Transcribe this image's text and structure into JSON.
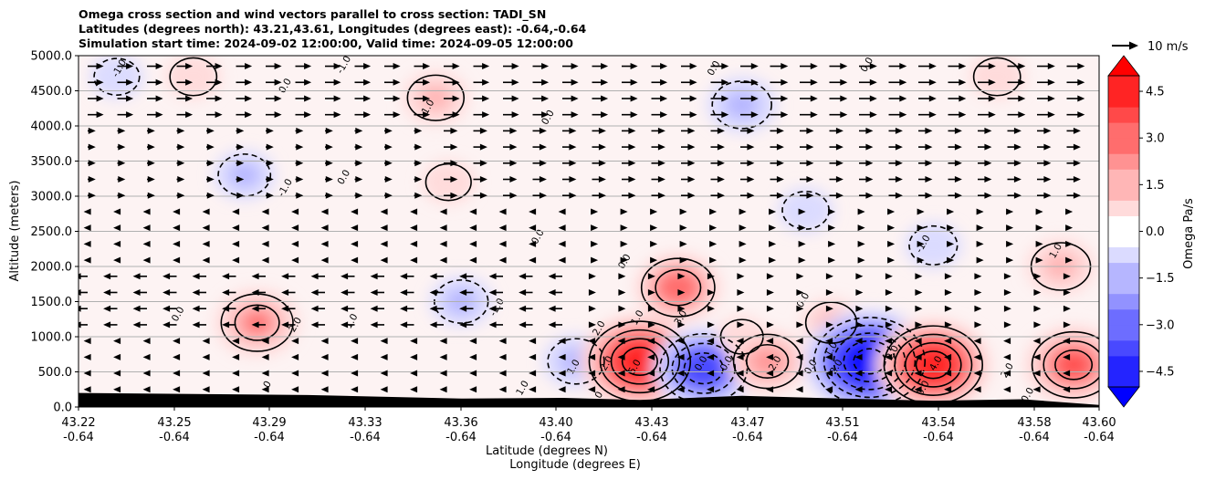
{
  "chart_data": {
    "type": "heatmap",
    "title_lines": [
      "Omega cross section and wind vectors parallel to cross section: TADI_SN",
      "Latitudes (degrees north): 43.21,43.61, Longitudes (degrees east): -0.64,-0.64",
      "Simulation start time: 2024-09-02 12:00:00, Valid time: 2024-09-05 12:00:00"
    ],
    "ylabel": "Altitude (meters)",
    "xlabel_lines": [
      "Latitude (degrees N)",
      "Longitude (degrees E)"
    ],
    "ylim": [
      0,
      5000
    ],
    "y_ticks": [
      "0.0",
      "500.0",
      "1000.0",
      "1500.0",
      "2000.0",
      "2500.0",
      "3000.0",
      "3500.0",
      "4000.0",
      "4500.0",
      "5000.0"
    ],
    "x_ticks": [
      {
        "lat": "43.22",
        "lon": "-0.64"
      },
      {
        "lat": "43.25",
        "lon": "-0.64"
      },
      {
        "lat": "43.29",
        "lon": "-0.64"
      },
      {
        "lat": "43.33",
        "lon": "-0.64"
      },
      {
        "lat": "43.36",
        "lon": "-0.64"
      },
      {
        "lat": "43.40",
        "lon": "-0.64"
      },
      {
        "lat": "43.43",
        "lon": "-0.64"
      },
      {
        "lat": "43.47",
        "lon": "-0.64"
      },
      {
        "lat": "43.51",
        "lon": "-0.64"
      },
      {
        "lat": "43.54",
        "lon": "-0.64"
      },
      {
        "lat": "43.58",
        "lon": "-0.64"
      },
      {
        "lat": "43.60",
        "lon": "-0.64"
      }
    ],
    "colorbar": {
      "label": "Omega Pa/s",
      "range": [
        -5,
        5
      ],
      "ticks": [
        "−4.5",
        "−3.0",
        "−1.5",
        "0.0",
        "1.5",
        "3.0",
        "4.5"
      ],
      "tick_values": [
        -4.5,
        -3.0,
        -1.5,
        0.0,
        1.5,
        3.0,
        4.5
      ],
      "colormap": "bwr",
      "extend": "both"
    },
    "quiver_key": "10 m/s",
    "grid": "horizontal",
    "omega_centers": [
      {
        "lat": 43.225,
        "alt": 4700,
        "value": -0.8
      },
      {
        "lat": 43.255,
        "alt": 4700,
        "value": 0.9
      },
      {
        "lat": 43.275,
        "alt": 3300,
        "value": -1.3
      },
      {
        "lat": 43.28,
        "alt": 1200,
        "value": 2.7
      },
      {
        "lat": 43.35,
        "alt": 4400,
        "value": 1.6
      },
      {
        "lat": 43.355,
        "alt": 3200,
        "value": 0.8
      },
      {
        "lat": 43.36,
        "alt": 1500,
        "value": -1.4
      },
      {
        "lat": 43.405,
        "alt": 650,
        "value": -1.6
      },
      {
        "lat": 43.43,
        "alt": 650,
        "value": 4.8
      },
      {
        "lat": 43.445,
        "alt": 1700,
        "value": 2.8
      },
      {
        "lat": 43.455,
        "alt": 550,
        "value": -3.8
      },
      {
        "lat": 43.47,
        "alt": 4300,
        "value": -1.8
      },
      {
        "lat": 43.47,
        "alt": 1000,
        "value": 0.6
      },
      {
        "lat": 43.48,
        "alt": 650,
        "value": 2.4
      },
      {
        "lat": 43.495,
        "alt": 2800,
        "value": -0.9
      },
      {
        "lat": 43.505,
        "alt": 1200,
        "value": 1.2
      },
      {
        "lat": 43.52,
        "alt": 650,
        "value": -5.5
      },
      {
        "lat": 43.545,
        "alt": 600,
        "value": 4.6
      },
      {
        "lat": 43.545,
        "alt": 2300,
        "value": -1.0
      },
      {
        "lat": 43.57,
        "alt": 4700,
        "value": 0.9
      },
      {
        "lat": 43.595,
        "alt": 2000,
        "value": 1.8
      },
      {
        "lat": 43.6,
        "alt": 600,
        "value": 3.5
      }
    ],
    "contour_labels": [
      {
        "lat": 43.227,
        "alt": 4800,
        "text": "-1.0"
      },
      {
        "lat": 43.292,
        "alt": 4550,
        "text": "0.0"
      },
      {
        "lat": 43.315,
        "alt": 4850,
        "text": "-1.0"
      },
      {
        "lat": 43.348,
        "alt": 4250,
        "text": "1.0"
      },
      {
        "lat": 43.292,
        "alt": 3100,
        "text": "-1.0"
      },
      {
        "lat": 43.315,
        "alt": 3250,
        "text": "0.0"
      },
      {
        "lat": 43.395,
        "alt": 4100,
        "text": "0.0"
      },
      {
        "lat": 43.46,
        "alt": 4800,
        "text": "0.0"
      },
      {
        "lat": 43.52,
        "alt": 4850,
        "text": "0.0"
      },
      {
        "lat": 43.391,
        "alt": 2400,
        "text": "0.0"
      },
      {
        "lat": 43.425,
        "alt": 2050,
        "text": "0.0"
      },
      {
        "lat": 43.25,
        "alt": 1300,
        "text": "0.0"
      },
      {
        "lat": 43.296,
        "alt": 1150,
        "text": "2.0"
      },
      {
        "lat": 43.318,
        "alt": 1200,
        "text": "1.0"
      },
      {
        "lat": 43.375,
        "alt": 1400,
        "text": "-1.0"
      },
      {
        "lat": 43.542,
        "alt": 2300,
        "text": "-1.0"
      },
      {
        "lat": 43.594,
        "alt": 2200,
        "text": "1.0"
      },
      {
        "lat": 43.495,
        "alt": 1500,
        "text": "0.0"
      },
      {
        "lat": 43.43,
        "alt": 1250,
        "text": "1.0"
      },
      {
        "lat": 43.447,
        "alt": 1250,
        "text": "3.0"
      },
      {
        "lat": 43.415,
        "alt": 1100,
        "text": "2.0"
      },
      {
        "lat": 43.405,
        "alt": 550,
        "text": "1.0"
      },
      {
        "lat": 43.418,
        "alt": 600,
        "text": "2.0"
      },
      {
        "lat": 43.429,
        "alt": 550,
        "text": "5.0"
      },
      {
        "lat": 43.455,
        "alt": 600,
        "text": "0.0"
      },
      {
        "lat": 43.465,
        "alt": 600,
        "text": "0.0"
      },
      {
        "lat": 43.484,
        "alt": 600,
        "text": "2.0"
      },
      {
        "lat": 43.498,
        "alt": 550,
        "text": "0.0"
      },
      {
        "lat": 43.506,
        "alt": 800,
        "text": "1.0"
      },
      {
        "lat": 43.508,
        "alt": 550,
        "text": "2.0"
      },
      {
        "lat": 43.53,
        "alt": 750,
        "text": "2.0"
      },
      {
        "lat": 43.547,
        "alt": 600,
        "text": "4.0"
      },
      {
        "lat": 43.542,
        "alt": 250,
        "text": "0.0"
      },
      {
        "lat": 43.575,
        "alt": 500,
        "text": "2.0"
      },
      {
        "lat": 43.583,
        "alt": 150,
        "text": "0.0"
      },
      {
        "lat": 43.285,
        "alt": 300,
        "text": "0"
      },
      {
        "lat": 43.385,
        "alt": 250,
        "text": "1.0"
      },
      {
        "lat": 43.415,
        "alt": 150,
        "text": "0"
      }
    ],
    "wind_vectors": [
      {
        "alt_min": 4000,
        "lat_min": 43.21,
        "lat_max": 43.45,
        "u": 0.8
      },
      {
        "alt_min": 4000,
        "lat_min": 43.45,
        "lat_max": 43.61,
        "u": 0.9
      },
      {
        "alt_min": 3000,
        "lat_min": 43.21,
        "lat_max": 43.35,
        "u": 0.4
      },
      {
        "alt_min": 3000,
        "lat_min": 43.35,
        "lat_max": 43.61,
        "u": 0.7
      },
      {
        "alt_min": 2000,
        "lat_min": 43.21,
        "lat_max": 43.4,
        "u": -0.2
      },
      {
        "alt_min": 2000,
        "lat_min": 43.4,
        "lat_max": 43.61,
        "u": 0.3
      },
      {
        "alt_min": 1000,
        "lat_min": 43.21,
        "lat_max": 43.4,
        "u": -0.7
      },
      {
        "alt_min": 1000,
        "lat_min": 43.4,
        "lat_max": 43.61,
        "u": 0.2
      },
      {
        "alt_min": 0,
        "lat_min": 43.21,
        "lat_max": 43.61,
        "u": -0.2
      }
    ]
  }
}
